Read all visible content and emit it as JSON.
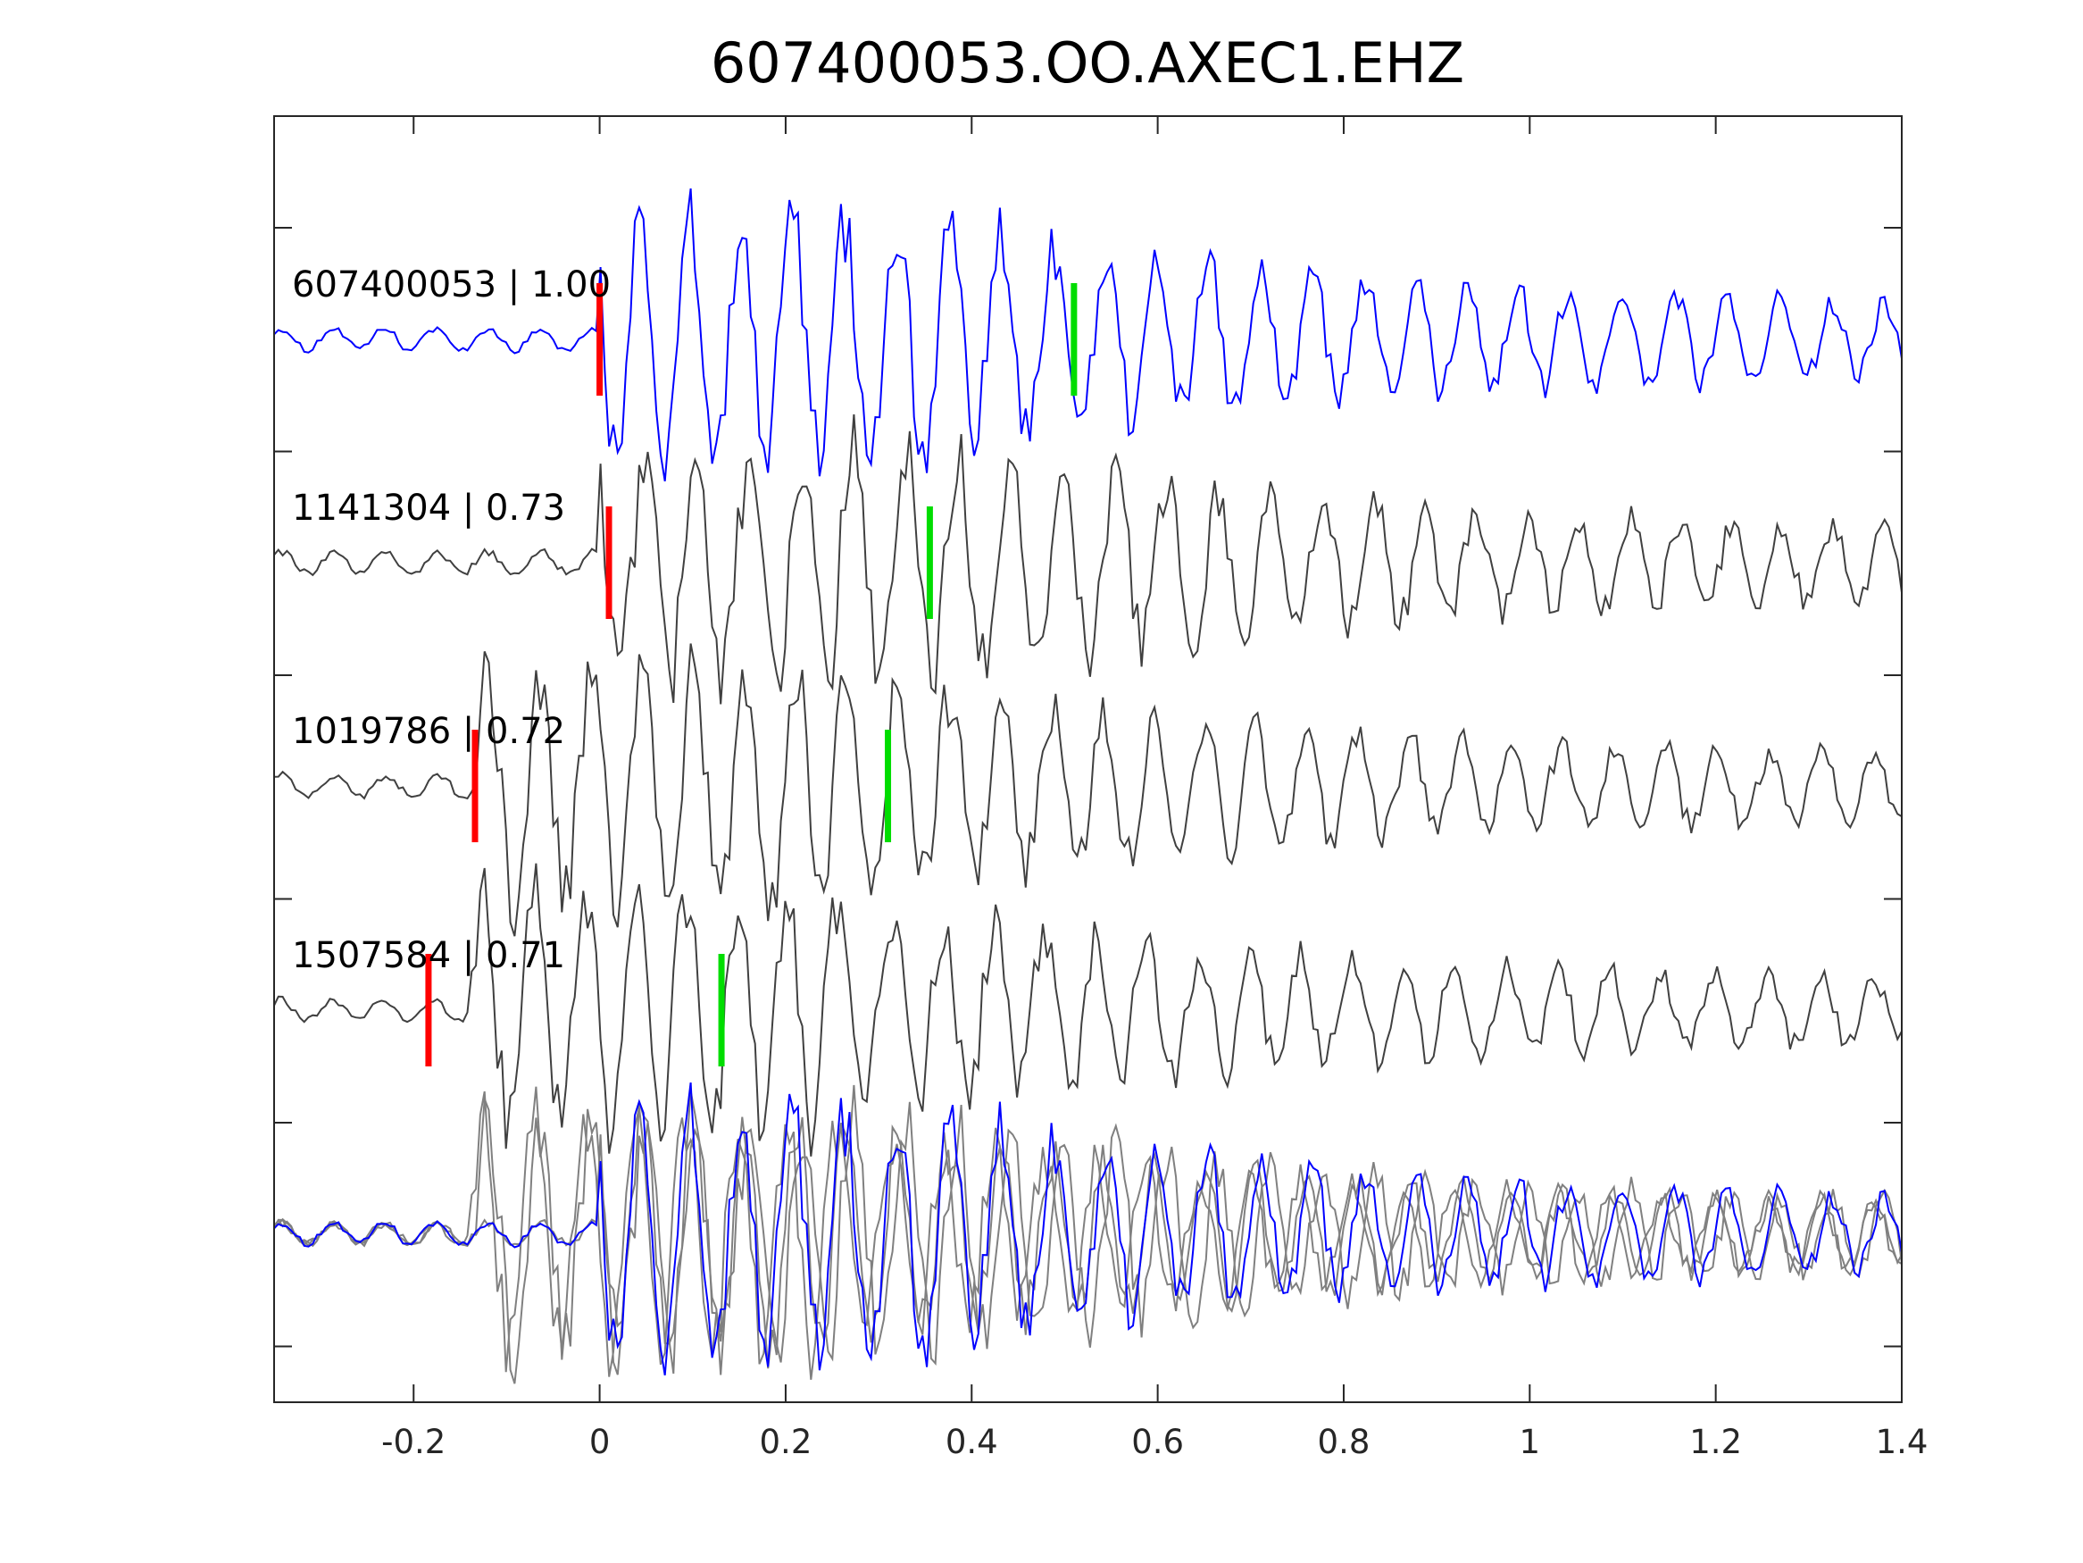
{
  "chart_data": {
    "type": "line",
    "title": "607400053.OO.AXEC1.EHZ",
    "xlabel": "",
    "ylabel": "",
    "xlim": [
      -0.35,
      1.4
    ],
    "x_ticks": [
      "-0.2",
      "0",
      "0.2",
      "0.4",
      "0.6",
      "0.8",
      "1",
      "1.2",
      "1.4"
    ],
    "x_tick_values": [
      -0.2,
      0,
      0.2,
      0.4,
      0.6,
      0.8,
      1,
      1.2,
      1.4
    ],
    "grid": false,
    "colors": {
      "primary": "#0000ff",
      "other": "#404040",
      "stack": "#808080",
      "p_pick": "#ff0000",
      "s_pick": "#00dd00"
    },
    "traces": [
      {
        "label": "607400053 | 1.00",
        "p_pick": 0.0,
        "s_pick": 0.51,
        "onset": 0.0,
        "amp": 1.0,
        "primary": true
      },
      {
        "label": "1141304 | 0.73",
        "p_pick": 0.01,
        "s_pick": 0.355,
        "onset": 0.0,
        "amp": 1.0,
        "primary": false
      },
      {
        "label": "1019786 | 0.72",
        "p_pick": -0.134,
        "s_pick": 0.31,
        "onset": -0.13,
        "amp": 1.0,
        "primary": false
      },
      {
        "label": "1507584 | 0.71",
        "p_pick": -0.184,
        "s_pick": 0.131,
        "onset": -0.14,
        "amp": 1.0,
        "primary": false
      }
    ]
  }
}
